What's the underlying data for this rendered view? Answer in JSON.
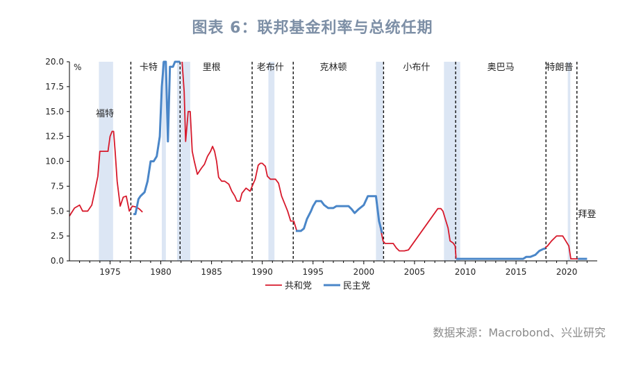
{
  "title": "图表 6：联邦基金利率与总统任期",
  "source": "数据来源：Macrobond、兴业研究",
  "chart_data": {
    "type": "line",
    "title": "图表 6：联邦基金利率与总统任期",
    "unit_label": "%",
    "xlim": [
      1971,
      2023
    ],
    "ylim": [
      0,
      20
    ],
    "x_ticks": [
      1975,
      1980,
      1985,
      1990,
      1995,
      2000,
      2005,
      2010,
      2015,
      2020
    ],
    "y_ticks": [
      "0.0",
      "2.5",
      "5.0",
      "7.5",
      "10.0",
      "12.5",
      "15.0",
      "17.5",
      "20.0"
    ],
    "legend": {
      "position": "bottom-center"
    },
    "colors": {
      "republican": "#d7192b",
      "democrat": "#4a86c8",
      "recession": "#dce6f4",
      "axis": "#000000"
    },
    "series": [
      {
        "name": "共和党",
        "color": "#d7192b",
        "segments": [
          [
            [
              1971.0,
              4.5
            ],
            [
              1971.5,
              5.3
            ],
            [
              1972.0,
              5.6
            ],
            [
              1972.3,
              5.0
            ],
            [
              1972.8,
              5.0
            ],
            [
              1973.2,
              5.6
            ],
            [
              1973.5,
              7.0
            ],
            [
              1973.8,
              8.5
            ],
            [
              1974.0,
              11.0
            ],
            [
              1974.5,
              11.0
            ],
            [
              1974.8,
              11.0
            ],
            [
              1975.0,
              12.5
            ],
            [
              1975.2,
              13.0
            ],
            [
              1975.35,
              13.0
            ],
            [
              1975.5,
              11.0
            ],
            [
              1975.7,
              8.0
            ],
            [
              1976.0,
              5.5
            ],
            [
              1976.3,
              6.4
            ],
            [
              1976.6,
              6.5
            ],
            [
              1976.9,
              5.0
            ],
            [
              1977.2,
              5.5
            ],
            [
              1977.6,
              5.4
            ],
            [
              1977.9,
              5.2
            ],
            [
              1978.2,
              4.9
            ]
          ],
          [
            [
              1982.1,
              20.0
            ],
            [
              1982.3,
              17.0
            ],
            [
              1982.45,
              12.0
            ],
            [
              1982.7,
              15.0
            ],
            [
              1982.9,
              15.0
            ],
            [
              1983.1,
              11.0
            ],
            [
              1983.3,
              10.0
            ],
            [
              1983.6,
              8.7
            ],
            [
              1984.0,
              9.3
            ],
            [
              1984.3,
              9.7
            ],
            [
              1984.6,
              10.5
            ],
            [
              1984.9,
              11.0
            ],
            [
              1985.1,
              11.5
            ],
            [
              1985.3,
              11.0
            ],
            [
              1985.5,
              10.0
            ],
            [
              1985.7,
              8.4
            ],
            [
              1986.0,
              8.0
            ],
            [
              1986.3,
              8.0
            ],
            [
              1986.7,
              7.7
            ],
            [
              1987.0,
              7.0
            ],
            [
              1987.3,
              6.5
            ],
            [
              1987.5,
              6.0
            ],
            [
              1987.8,
              6.0
            ],
            [
              1988.0,
              6.8
            ],
            [
              1988.4,
              7.3
            ],
            [
              1988.8,
              7.0
            ],
            [
              1989.0,
              7.5
            ],
            [
              1989.3,
              8.2
            ],
            [
              1989.6,
              9.6
            ],
            [
              1989.8,
              9.8
            ],
            [
              1990.0,
              9.8
            ],
            [
              1990.3,
              9.5
            ],
            [
              1990.5,
              8.5
            ],
            [
              1990.8,
              8.2
            ],
            [
              1991.0,
              8.2
            ],
            [
              1991.3,
              8.2
            ],
            [
              1991.6,
              7.8
            ],
            [
              1991.9,
              6.5
            ],
            [
              1992.3,
              5.5
            ],
            [
              1992.5,
              5.0
            ],
            [
              1992.8,
              4.0
            ],
            [
              1993.1,
              4.0
            ],
            [
              1993.4,
              3.0
            ]
          ],
          [
            [
              2001.6,
              3.5
            ],
            [
              2001.9,
              2.0
            ],
            [
              2002.1,
              1.75
            ],
            [
              2002.5,
              1.75
            ],
            [
              2002.9,
              1.75
            ],
            [
              2003.2,
              1.3
            ],
            [
              2003.5,
              1.0
            ],
            [
              2004.0,
              1.0
            ],
            [
              2004.4,
              1.1
            ],
            [
              2007.3,
              5.25
            ],
            [
              2007.6,
              5.25
            ],
            [
              2007.8,
              5.0
            ],
            [
              2008.0,
              4.3
            ],
            [
              2008.3,
              3.3
            ],
            [
              2008.5,
              2.0
            ],
            [
              2008.8,
              1.8
            ],
            [
              2009.0,
              1.5
            ],
            [
              2009.1,
              0.2
            ]
          ],
          [
            [
              2017.8,
              1.25
            ],
            [
              2018.1,
              1.5
            ],
            [
              2018.5,
              2.0
            ],
            [
              2019.0,
              2.5
            ],
            [
              2019.6,
              2.5
            ],
            [
              2019.9,
              2.0
            ],
            [
              2020.2,
              1.5
            ],
            [
              2020.4,
              0.2
            ],
            [
              2021.1,
              0.2
            ]
          ]
        ]
      },
      {
        "name": "民主党",
        "color": "#4a86c8",
        "segments": [
          [
            [
              1977.3,
              4.7
            ],
            [
              1977.5,
              4.7
            ],
            [
              1977.8,
              6.2
            ],
            [
              1978.0,
              6.5
            ],
            [
              1978.4,
              6.9
            ],
            [
              1978.7,
              8.0
            ],
            [
              1979.0,
              10.0
            ],
            [
              1979.3,
              10.0
            ],
            [
              1979.6,
              10.5
            ],
            [
              1979.9,
              12.5
            ],
            [
              1980.1,
              17.5
            ],
            [
              1980.3,
              20.0
            ],
            [
              1980.5,
              20.0
            ],
            [
              1980.7,
              12.0
            ],
            [
              1980.9,
              19.5
            ],
            [
              1981.2,
              19.5
            ],
            [
              1981.4,
              20.0
            ],
            [
              1981.7,
              20.0
            ],
            [
              1981.9,
              20.0
            ]
          ],
          [
            [
              1993.3,
              3.0
            ],
            [
              1993.8,
              3.0
            ],
            [
              1994.1,
              3.25
            ],
            [
              1994.4,
              4.2
            ],
            [
              1994.8,
              5.0
            ],
            [
              1995.0,
              5.5
            ],
            [
              1995.3,
              6.0
            ],
            [
              1995.8,
              6.0
            ],
            [
              1996.1,
              5.6
            ],
            [
              1996.5,
              5.3
            ],
            [
              1997.0,
              5.3
            ],
            [
              1997.3,
              5.5
            ],
            [
              1998.5,
              5.5
            ],
            [
              1998.8,
              5.2
            ],
            [
              1999.1,
              4.8
            ],
            [
              1999.5,
              5.2
            ],
            [
              2000.0,
              5.6
            ],
            [
              2000.4,
              6.5
            ],
            [
              2001.2,
              6.5
            ],
            [
              2001.5,
              4.0
            ],
            [
              2001.8,
              2.8
            ]
          ],
          [
            [
              2009.1,
              0.2
            ],
            [
              2015.7,
              0.2
            ],
            [
              2016.0,
              0.4
            ],
            [
              2016.4,
              0.4
            ],
            [
              2016.9,
              0.6
            ],
            [
              2017.3,
              1.0
            ],
            [
              2017.7,
              1.2
            ],
            [
              2017.9,
              1.25
            ]
          ],
          [
            [
              2021.1,
              0.2
            ],
            [
              2022.0,
              0.2
            ]
          ]
        ]
      }
    ],
    "presidential_changes": [
      1977.05,
      1981.9,
      1989.0,
      1993.05,
      2001.95,
      2009.05,
      2017.95,
      2021.0
    ],
    "recessions": [
      [
        1973.9,
        1975.3
      ],
      [
        1980.1,
        1980.5
      ],
      [
        1981.6,
        1982.9
      ],
      [
        1990.6,
        1991.2
      ],
      [
        2001.2,
        2001.9
      ],
      [
        2007.9,
        2009.5
      ],
      [
        2020.1,
        2020.35
      ]
    ],
    "presidents": [
      {
        "name": "福特",
        "x": 1974.5,
        "y": 14.5
      },
      {
        "name": "卡特",
        "x": 1978.8,
        "y": 20.0
      },
      {
        "name": "里根",
        "x": 1985.0,
        "y": 20.0
      },
      {
        "name": "老布什",
        "x": 1990.8,
        "y": 20.0
      },
      {
        "name": "克林顿",
        "x": 1997.0,
        "y": 20.0
      },
      {
        "name": "小布什",
        "x": 2005.2,
        "y": 20.0
      },
      {
        "name": "奥巴马",
        "x": 2013.5,
        "y": 20.0
      },
      {
        "name": "特朗普",
        "x": 2019.3,
        "y": 20.0
      },
      {
        "name": "拜登",
        "x": 2022.0,
        "y": 4.4
      }
    ]
  }
}
